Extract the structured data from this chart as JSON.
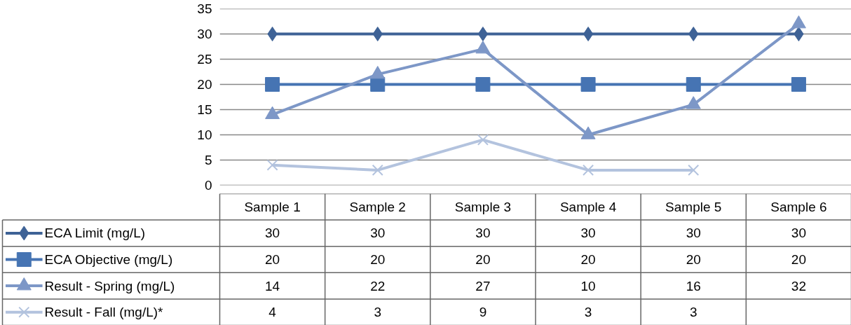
{
  "chart_data": {
    "type": "line",
    "categories": [
      "Sample 1",
      "Sample 2",
      "Sample 3",
      "Sample 4",
      "Sample 5",
      "Sample 6"
    ],
    "ylim": [
      0,
      35
    ],
    "yticks": [
      0,
      5,
      10,
      15,
      20,
      25,
      30,
      35
    ],
    "grid": "y",
    "legend": "bottom",
    "data_labels": true,
    "series": [
      {
        "name": "ECA Limit (mg/L)",
        "color": "#3e6296",
        "marker": "diamond",
        "values": [
          30,
          30,
          30,
          30,
          30,
          30
        ]
      },
      {
        "name": "ECA Objective (mg/L)",
        "color": "#4674b3",
        "marker": "square",
        "values": [
          20,
          20,
          20,
          20,
          20,
          20
        ]
      },
      {
        "name": "Result - Spring (mg/L)",
        "color": "#7d97c7",
        "marker": "triangle",
        "values": [
          14,
          22,
          27,
          10,
          16,
          32
        ]
      },
      {
        "name": "Result - Fall (mg/L)*",
        "color": "#b3c3de",
        "marker": "x",
        "values": [
          4,
          3,
          9,
          3,
          3,
          null
        ]
      }
    ]
  }
}
